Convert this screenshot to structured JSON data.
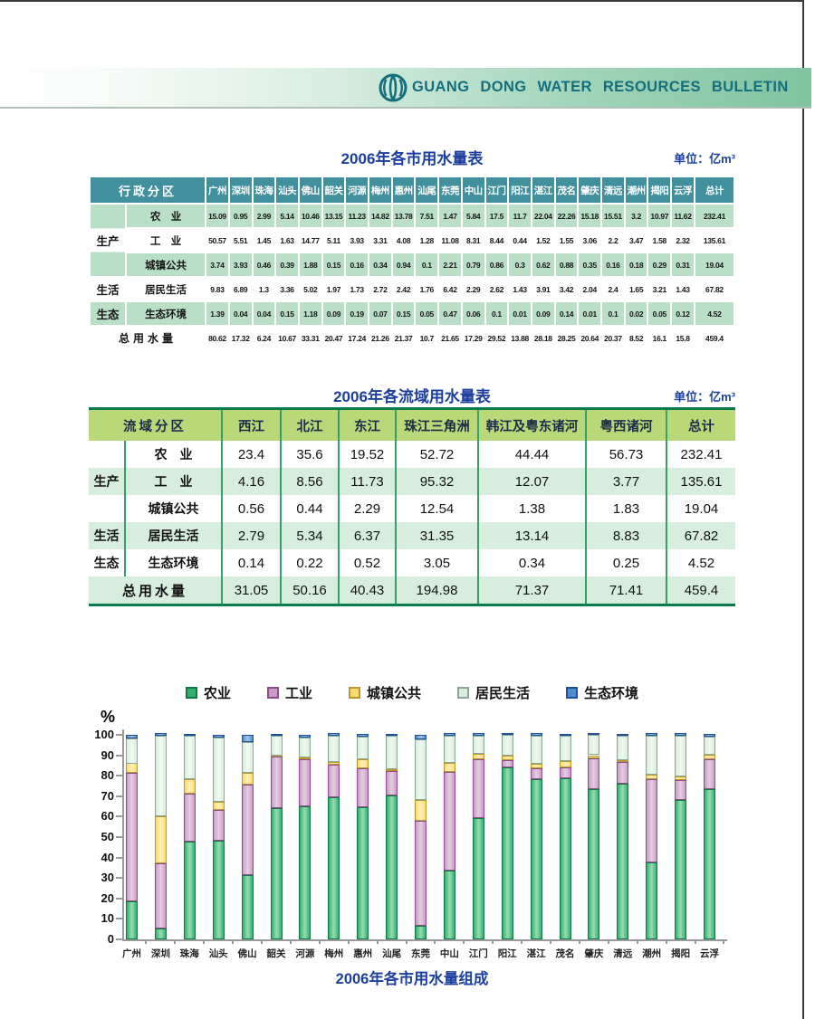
{
  "banner": {
    "text": "GUANG DONG WATER RESOURCES BULLETIN",
    "accent_color": "#136f80",
    "bar_color": "#7fc49f"
  },
  "city_table": {
    "title": "2006年各市用水量表",
    "unit": "单位：亿m³",
    "corner": "行政分区",
    "columns": [
      "广州",
      "深圳",
      "珠海",
      "汕头",
      "佛山",
      "韶关",
      "河源",
      "梅州",
      "惠州",
      "汕尾",
      "东莞",
      "中山",
      "江门",
      "阳江",
      "湛江",
      "茂名",
      "肇庆",
      "清远",
      "潮州",
      "揭阳",
      "云浮",
      "总计"
    ],
    "groups": [
      {
        "name": "生产",
        "rows": [
          {
            "label": "农　业",
            "values": [
              "15.09",
              "0.95",
              "2.99",
              "5.14",
              "10.46",
              "13.15",
              "11.23",
              "14.82",
              "13.78",
              "7.51",
              "1.47",
              "5.84",
              "17.5",
              "11.7",
              "22.04",
              "22.26",
              "15.18",
              "15.51",
              "3.2",
              "10.97",
              "11.62",
              "232.41"
            ]
          },
          {
            "label": "工　业",
            "values": [
              "50.57",
              "5.51",
              "1.45",
              "1.63",
              "14.77",
              "5.11",
              "3.93",
              "3.31",
              "4.08",
              "1.28",
              "11.08",
              "8.31",
              "8.44",
              "0.44",
              "1.52",
              "1.55",
              "3.06",
              "2.2",
              "3.47",
              "1.58",
              "2.32",
              "135.61"
            ]
          },
          {
            "label": "城镇公共",
            "values": [
              "3.74",
              "3.93",
              "0.46",
              "0.39",
              "1.88",
              "0.15",
              "0.16",
              "0.34",
              "0.94",
              "0.1",
              "2.21",
              "0.79",
              "0.86",
              "0.3",
              "0.62",
              "0.88",
              "0.35",
              "0.16",
              "0.18",
              "0.29",
              "0.31",
              "19.04"
            ]
          }
        ]
      },
      {
        "name": "生活",
        "rows": [
          {
            "label": "居民生活",
            "values": [
              "9.83",
              "6.89",
              "1.3",
              "3.36",
              "5.02",
              "1.97",
              "1.73",
              "2.72",
              "2.42",
              "1.76",
              "6.42",
              "2.29",
              "2.62",
              "1.43",
              "3.91",
              "3.42",
              "2.04",
              "2.4",
              "1.65",
              "3.21",
              "1.43",
              "67.82"
            ]
          }
        ]
      },
      {
        "name": "生态",
        "rows": [
          {
            "label": "生态环境",
            "values": [
              "1.39",
              "0.04",
              "0.04",
              "0.15",
              "1.18",
              "0.09",
              "0.19",
              "0.07",
              "0.15",
              "0.05",
              "0.47",
              "0.06",
              "0.1",
              "0.01",
              "0.09",
              "0.14",
              "0.01",
              "0.1",
              "0.02",
              "0.05",
              "0.12",
              "4.52"
            ]
          }
        ]
      }
    ],
    "total": {
      "label": "总用水量",
      "values": [
        "80.62",
        "17.32",
        "6.24",
        "10.67",
        "33.31",
        "20.47",
        "17.24",
        "21.26",
        "21.37",
        "10.7",
        "21.65",
        "17.29",
        "29.52",
        "13.88",
        "28.18",
        "28.25",
        "20.64",
        "20.37",
        "8.52",
        "16.1",
        "15.8",
        "459.4"
      ]
    }
  },
  "basin_table": {
    "title": "2006年各流域用水量表",
    "unit": "单位：亿m³",
    "corner": "流域分区",
    "columns": [
      "西江",
      "北江",
      "东江",
      "珠江三角洲",
      "韩江及粤东诸河",
      "粤西诸河",
      "总计"
    ],
    "groups": [
      {
        "name": "生产",
        "rows": [
          {
            "label": "农　业",
            "values": [
              "23.4",
              "35.6",
              "19.52",
              "52.72",
              "44.44",
              "56.73",
              "232.41"
            ]
          },
          {
            "label": "工　业",
            "values": [
              "4.16",
              "8.56",
              "11.73",
              "95.32",
              "12.07",
              "3.77",
              "135.61"
            ]
          },
          {
            "label": "城镇公共",
            "values": [
              "0.56",
              "0.44",
              "2.29",
              "12.54",
              "1.38",
              "1.83",
              "19.04"
            ]
          }
        ]
      },
      {
        "name": "生活",
        "rows": [
          {
            "label": "居民生活",
            "values": [
              "2.79",
              "5.34",
              "6.37",
              "31.35",
              "13.14",
              "8.83",
              "67.82"
            ]
          }
        ]
      },
      {
        "name": "生态",
        "rows": [
          {
            "label": "生态环境",
            "values": [
              "0.14",
              "0.22",
              "0.52",
              "3.05",
              "0.34",
              "0.25",
              "4.52"
            ]
          }
        ]
      }
    ],
    "total": {
      "label": "总用水量",
      "values": [
        "31.05",
        "50.16",
        "40.43",
        "194.98",
        "71.37",
        "71.41",
        "459.4"
      ]
    }
  },
  "chart_data": {
    "type": "bar",
    "stacked": true,
    "percent": true,
    "title": "2006年各市用水量组成",
    "ylabel": "%",
    "ylim": [
      0,
      100
    ],
    "ytick_step": 10,
    "legend_position": "top",
    "categories": [
      "广州",
      "深圳",
      "珠海",
      "汕头",
      "佛山",
      "韶关",
      "河源",
      "梅州",
      "惠州",
      "汕尾",
      "东莞",
      "中山",
      "江门",
      "阳江",
      "湛江",
      "茂名",
      "肇庆",
      "清远",
      "潮州",
      "揭阳",
      "云浮"
    ],
    "series": [
      {
        "name": "农业",
        "color": "#2fb170",
        "light": "#8fd7ae",
        "border": "#0f7a41",
        "values": [
          15.09,
          0.95,
          2.99,
          5.14,
          10.46,
          13.15,
          11.23,
          14.82,
          13.78,
          7.51,
          1.47,
          5.84,
          17.5,
          11.7,
          22.04,
          22.26,
          15.18,
          15.51,
          3.2,
          10.97,
          11.62
        ]
      },
      {
        "name": "工业",
        "color": "#c89cc6",
        "light": "#e3c9e1",
        "border": "#8e4a8c",
        "values": [
          50.57,
          5.51,
          1.45,
          1.63,
          14.77,
          5.11,
          3.93,
          3.31,
          4.08,
          1.28,
          11.08,
          8.31,
          8.44,
          0.44,
          1.52,
          1.55,
          3.06,
          2.2,
          3.47,
          1.58,
          2.32
        ]
      },
      {
        "name": "城镇公共",
        "color": "#fadc6c",
        "light": "#fdeeb2",
        "border": "#bb9730",
        "values": [
          3.74,
          3.93,
          0.46,
          0.39,
          1.88,
          0.15,
          0.16,
          0.34,
          0.94,
          0.1,
          2.21,
          0.79,
          0.86,
          0.3,
          0.62,
          0.88,
          0.35,
          0.16,
          0.18,
          0.29,
          0.31
        ]
      },
      {
        "name": "居民生活",
        "color": "#d9eedf",
        "light": "#eff8f1",
        "border": "#85a995",
        "values": [
          9.83,
          6.89,
          1.3,
          3.36,
          5.02,
          1.97,
          1.73,
          2.72,
          2.42,
          1.76,
          6.42,
          2.29,
          2.62,
          1.43,
          3.91,
          3.42,
          2.04,
          2.4,
          1.65,
          3.21,
          1.43
        ]
      },
      {
        "name": "生态环境",
        "color": "#4a90d0",
        "light": "#9cc3e8",
        "border": "#1f4f9a",
        "values": [
          1.39,
          0.04,
          0.04,
          0.15,
          1.18,
          0.09,
          0.19,
          0.07,
          0.15,
          0.05,
          0.47,
          0.06,
          0.1,
          0.01,
          0.09,
          0.14,
          0.01,
          0.1,
          0.02,
          0.05,
          0.12
        ]
      }
    ]
  }
}
